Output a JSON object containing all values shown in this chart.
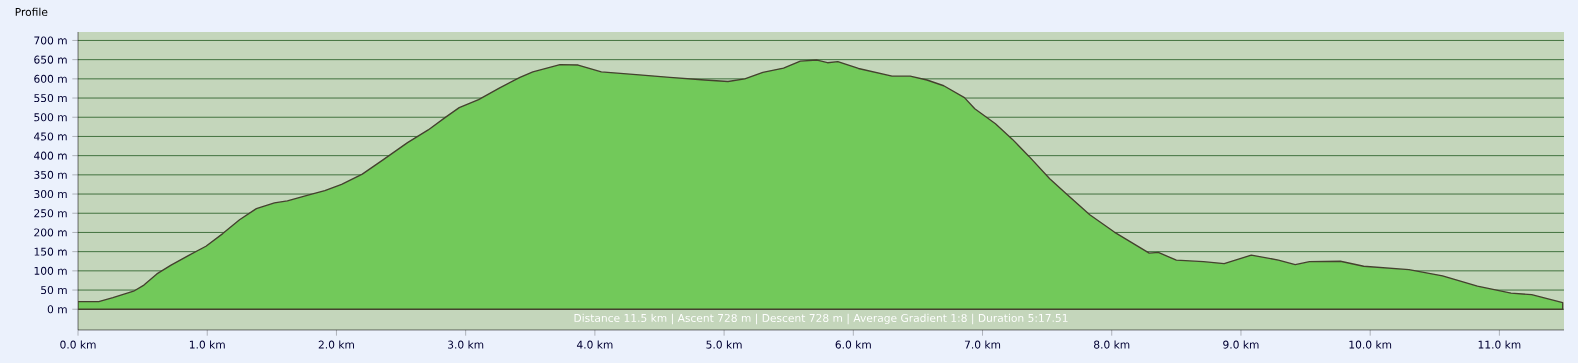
{
  "chart_data": {
    "type": "area",
    "title": "Profile",
    "annotations": [
      "Distance 11.5 km | Ascent 728 m | Descent 728 m | Average Gradient 1:8 | Duration 5:17.51"
    ],
    "x": [
      0,
      0.16,
      0.27,
      0.43,
      0.51,
      0.61,
      0.72,
      0.85,
      0.99,
      1.12,
      1.25,
      1.38,
      1.52,
      1.62,
      1.78,
      1.91,
      2.04,
      2.2,
      2.36,
      2.55,
      2.71,
      2.84,
      2.95,
      3.1,
      3.26,
      3.42,
      3.52,
      3.73,
      3.87,
      4.05,
      4.32,
      4.58,
      4.85,
      5.03,
      5.16,
      5.3,
      5.46,
      5.59,
      5.72,
      5.8,
      5.88,
      6.04,
      6.3,
      6.44,
      6.57,
      6.7,
      6.86,
      6.94,
      7.1,
      7.23,
      7.36,
      7.52,
      7.65,
      7.83,
      8.02,
      8.29,
      8.36,
      8.5,
      8.71,
      8.87,
      9.08,
      9.29,
      9.42,
      9.53,
      9.77,
      9.95,
      10.3,
      10.56,
      10.83,
      11.09,
      11.25,
      11.49
    ],
    "series": [
      {
        "color": "#72c95a",
        "values": [
          20,
          20,
          30,
          47,
          63,
          92,
          115,
          139,
          164,
          197,
          233,
          262,
          277,
          282,
          297,
          309,
          325,
          352,
          389,
          434,
          467,
          499,
          525,
          546,
          576,
          604,
          618,
          637,
          636,
          618,
          611,
          604,
          597,
          593,
          600,
          617,
          628,
          646,
          649,
          642,
          645,
          627,
          607,
          607,
          597,
          582,
          551,
          522,
          483,
          443,
          398,
          340,
          300,
          246,
          201,
          146,
          148,
          128,
          124,
          119,
          141,
          128,
          116,
          124,
          125,
          112,
          103,
          87,
          60,
          42,
          38,
          17
        ]
      }
    ],
    "xlim": [
      0,
      11.5
    ],
    "xticks": [
      {
        "value": 0,
        "label": "0.0 km"
      },
      {
        "value": 1,
        "label": "1.0 km"
      },
      {
        "value": 2,
        "label": "2.0 km"
      },
      {
        "value": 3,
        "label": "3.0 km"
      },
      {
        "value": 4,
        "label": "4.0 km"
      },
      {
        "value": 5,
        "label": "5.0 km"
      },
      {
        "value": 6,
        "label": "6.0 km"
      },
      {
        "value": 7,
        "label": "7.0 km"
      },
      {
        "value": 8,
        "label": "8.0 km"
      },
      {
        "value": 9,
        "label": "9.0 km"
      },
      {
        "value": 10,
        "label": "10.0 km"
      },
      {
        "value": 11,
        "label": "11.0 km"
      }
    ],
    "ylim": [
      -54,
      722
    ],
    "yticks": [
      {
        "value": 0,
        "label": "0 m"
      },
      {
        "value": 50,
        "label": "50 m"
      },
      {
        "value": 100,
        "label": "100 m"
      },
      {
        "value": 150,
        "label": "150 m"
      },
      {
        "value": 200,
        "label": "200 m"
      },
      {
        "value": 250,
        "label": "250 m"
      },
      {
        "value": 300,
        "label": "300 m"
      },
      {
        "value": 350,
        "label": "350 m"
      },
      {
        "value": 400,
        "label": "400 m"
      },
      {
        "value": 450,
        "label": "450 m"
      },
      {
        "value": 500,
        "label": "500 m"
      },
      {
        "value": 550,
        "label": "550 m"
      },
      {
        "value": 600,
        "label": "600 m"
      },
      {
        "value": 650,
        "label": "650 m"
      },
      {
        "value": 700,
        "label": "700 m"
      }
    ],
    "grid": "y"
  }
}
